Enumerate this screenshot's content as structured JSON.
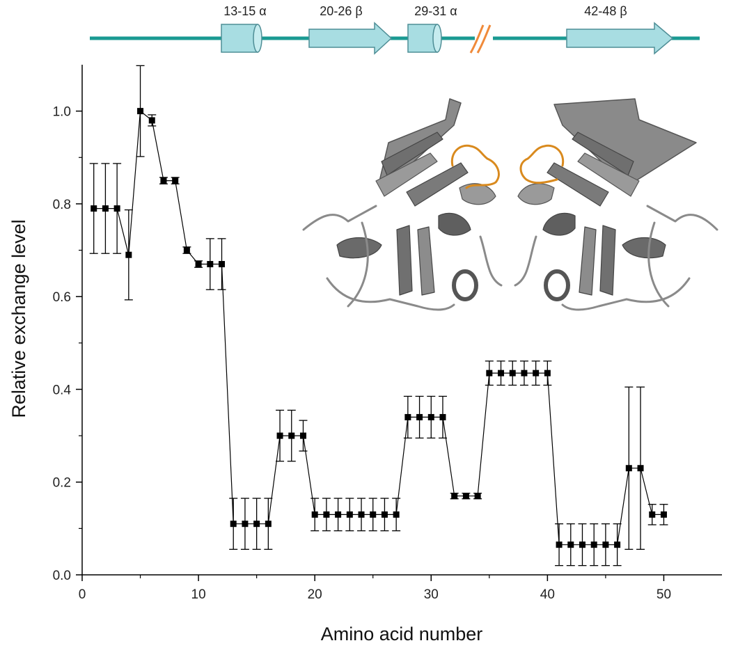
{
  "chart_data": {
    "type": "line",
    "title": "",
    "xlabel": "Amino acid number",
    "ylabel": "Relative exchange level",
    "xlim": [
      0,
      55
    ],
    "ylim": [
      0,
      1.1
    ],
    "x_ticks": [
      0,
      10,
      20,
      30,
      40,
      50
    ],
    "y_ticks": [
      0.0,
      0.2,
      0.4,
      0.6,
      0.8,
      1.0
    ],
    "x_tick_labels": [
      "0",
      "10",
      "20",
      "30",
      "40",
      "50"
    ],
    "y_tick_labels": [
      "0.0",
      "0.2",
      "0.4",
      "0.6",
      "0.8",
      "1.0"
    ],
    "grid": false,
    "legend": "none",
    "colors": {
      "series": "#000000",
      "backbone": "#1a9a92",
      "element_fill": "#a8dde2",
      "element_stroke": "#4e8e96",
      "break_mark": "#f08a3a",
      "protein": "#777777",
      "loop": "#d98a1e"
    },
    "series": [
      {
        "x": [
          1,
          2,
          3,
          4,
          5,
          6,
          7,
          8,
          9,
          10,
          11,
          12,
          13,
          14,
          15,
          16,
          17,
          18,
          19,
          20,
          21,
          22,
          23,
          24,
          25,
          26,
          27,
          28,
          29,
          30,
          31,
          32,
          33,
          34,
          35,
          36,
          37,
          38,
          39,
          40,
          41,
          42,
          43,
          44,
          45,
          46,
          47,
          48,
          49,
          50
        ],
        "values": [
          0.79,
          0.79,
          0.79,
          0.69,
          1.0,
          0.98,
          0.85,
          0.85,
          0.7,
          0.67,
          0.67,
          0.67,
          0.11,
          0.11,
          0.11,
          0.11,
          0.3,
          0.3,
          0.3,
          0.13,
          0.13,
          0.13,
          0.13,
          0.13,
          0.13,
          0.13,
          0.13,
          0.34,
          0.34,
          0.34,
          0.34,
          0.17,
          0.17,
          0.17,
          0.435,
          0.435,
          0.435,
          0.435,
          0.435,
          0.435,
          0.065,
          0.065,
          0.065,
          0.065,
          0.065,
          0.065,
          0.23,
          0.23,
          0.13,
          0.13
        ],
        "errors": [
          0.097,
          0.097,
          0.097,
          0.097,
          0.098,
          0.012,
          0.007,
          0.007,
          0.007,
          0.007,
          0.055,
          0.055,
          0.055,
          0.055,
          0.055,
          0.055,
          0.055,
          0.055,
          0.033,
          0.035,
          0.035,
          0.035,
          0.035,
          0.035,
          0.035,
          0.035,
          0.035,
          0.045,
          0.045,
          0.045,
          0.045,
          0.006,
          0.006,
          0.006,
          0.026,
          0.026,
          0.026,
          0.026,
          0.026,
          0.026,
          0.045,
          0.045,
          0.045,
          0.045,
          0.045,
          0.045,
          0.175,
          0.175,
          0.022,
          0.022
        ]
      }
    ],
    "secondary_structure": {
      "elements": [
        {
          "label": "13-15 α",
          "type": "helix",
          "start": 13,
          "end": 15
        },
        {
          "label": "20-26 β",
          "type": "strand",
          "start": 20,
          "end": 26
        },
        {
          "label": "29-31 α",
          "type": "helix",
          "start": 29,
          "end": 31
        },
        {
          "label": "42-48 β",
          "type": "strand",
          "start": 42,
          "end": 48
        }
      ]
    },
    "inset": {
      "description_icon": "protein-dimer-structure"
    }
  }
}
